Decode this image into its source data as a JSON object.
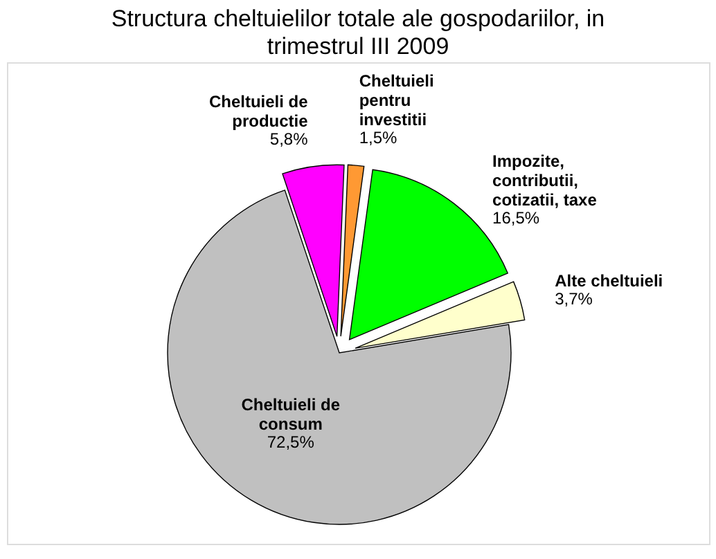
{
  "chart_data": {
    "type": "pie",
    "title": "Structura cheltuielilor totale ale gospodariilor, in trimestrul III 2009",
    "categories": [
      "Cheltuieli de consum",
      "Cheltuieli de productie",
      "Cheltuieli pentru investitii",
      "Impozite, contributii, cotizatii, taxe",
      "Alte cheltuieli"
    ],
    "values": [
      72.5,
      5.8,
      1.5,
      16.5,
      3.7
    ],
    "colors": [
      "#c0c0c0",
      "#ff00ff",
      "#ff9933",
      "#00ff00",
      "#ffffcc"
    ],
    "value_labels": [
      "72,5%",
      "5,8%",
      "1,5%",
      "16,5%",
      "3,7%"
    ]
  }
}
